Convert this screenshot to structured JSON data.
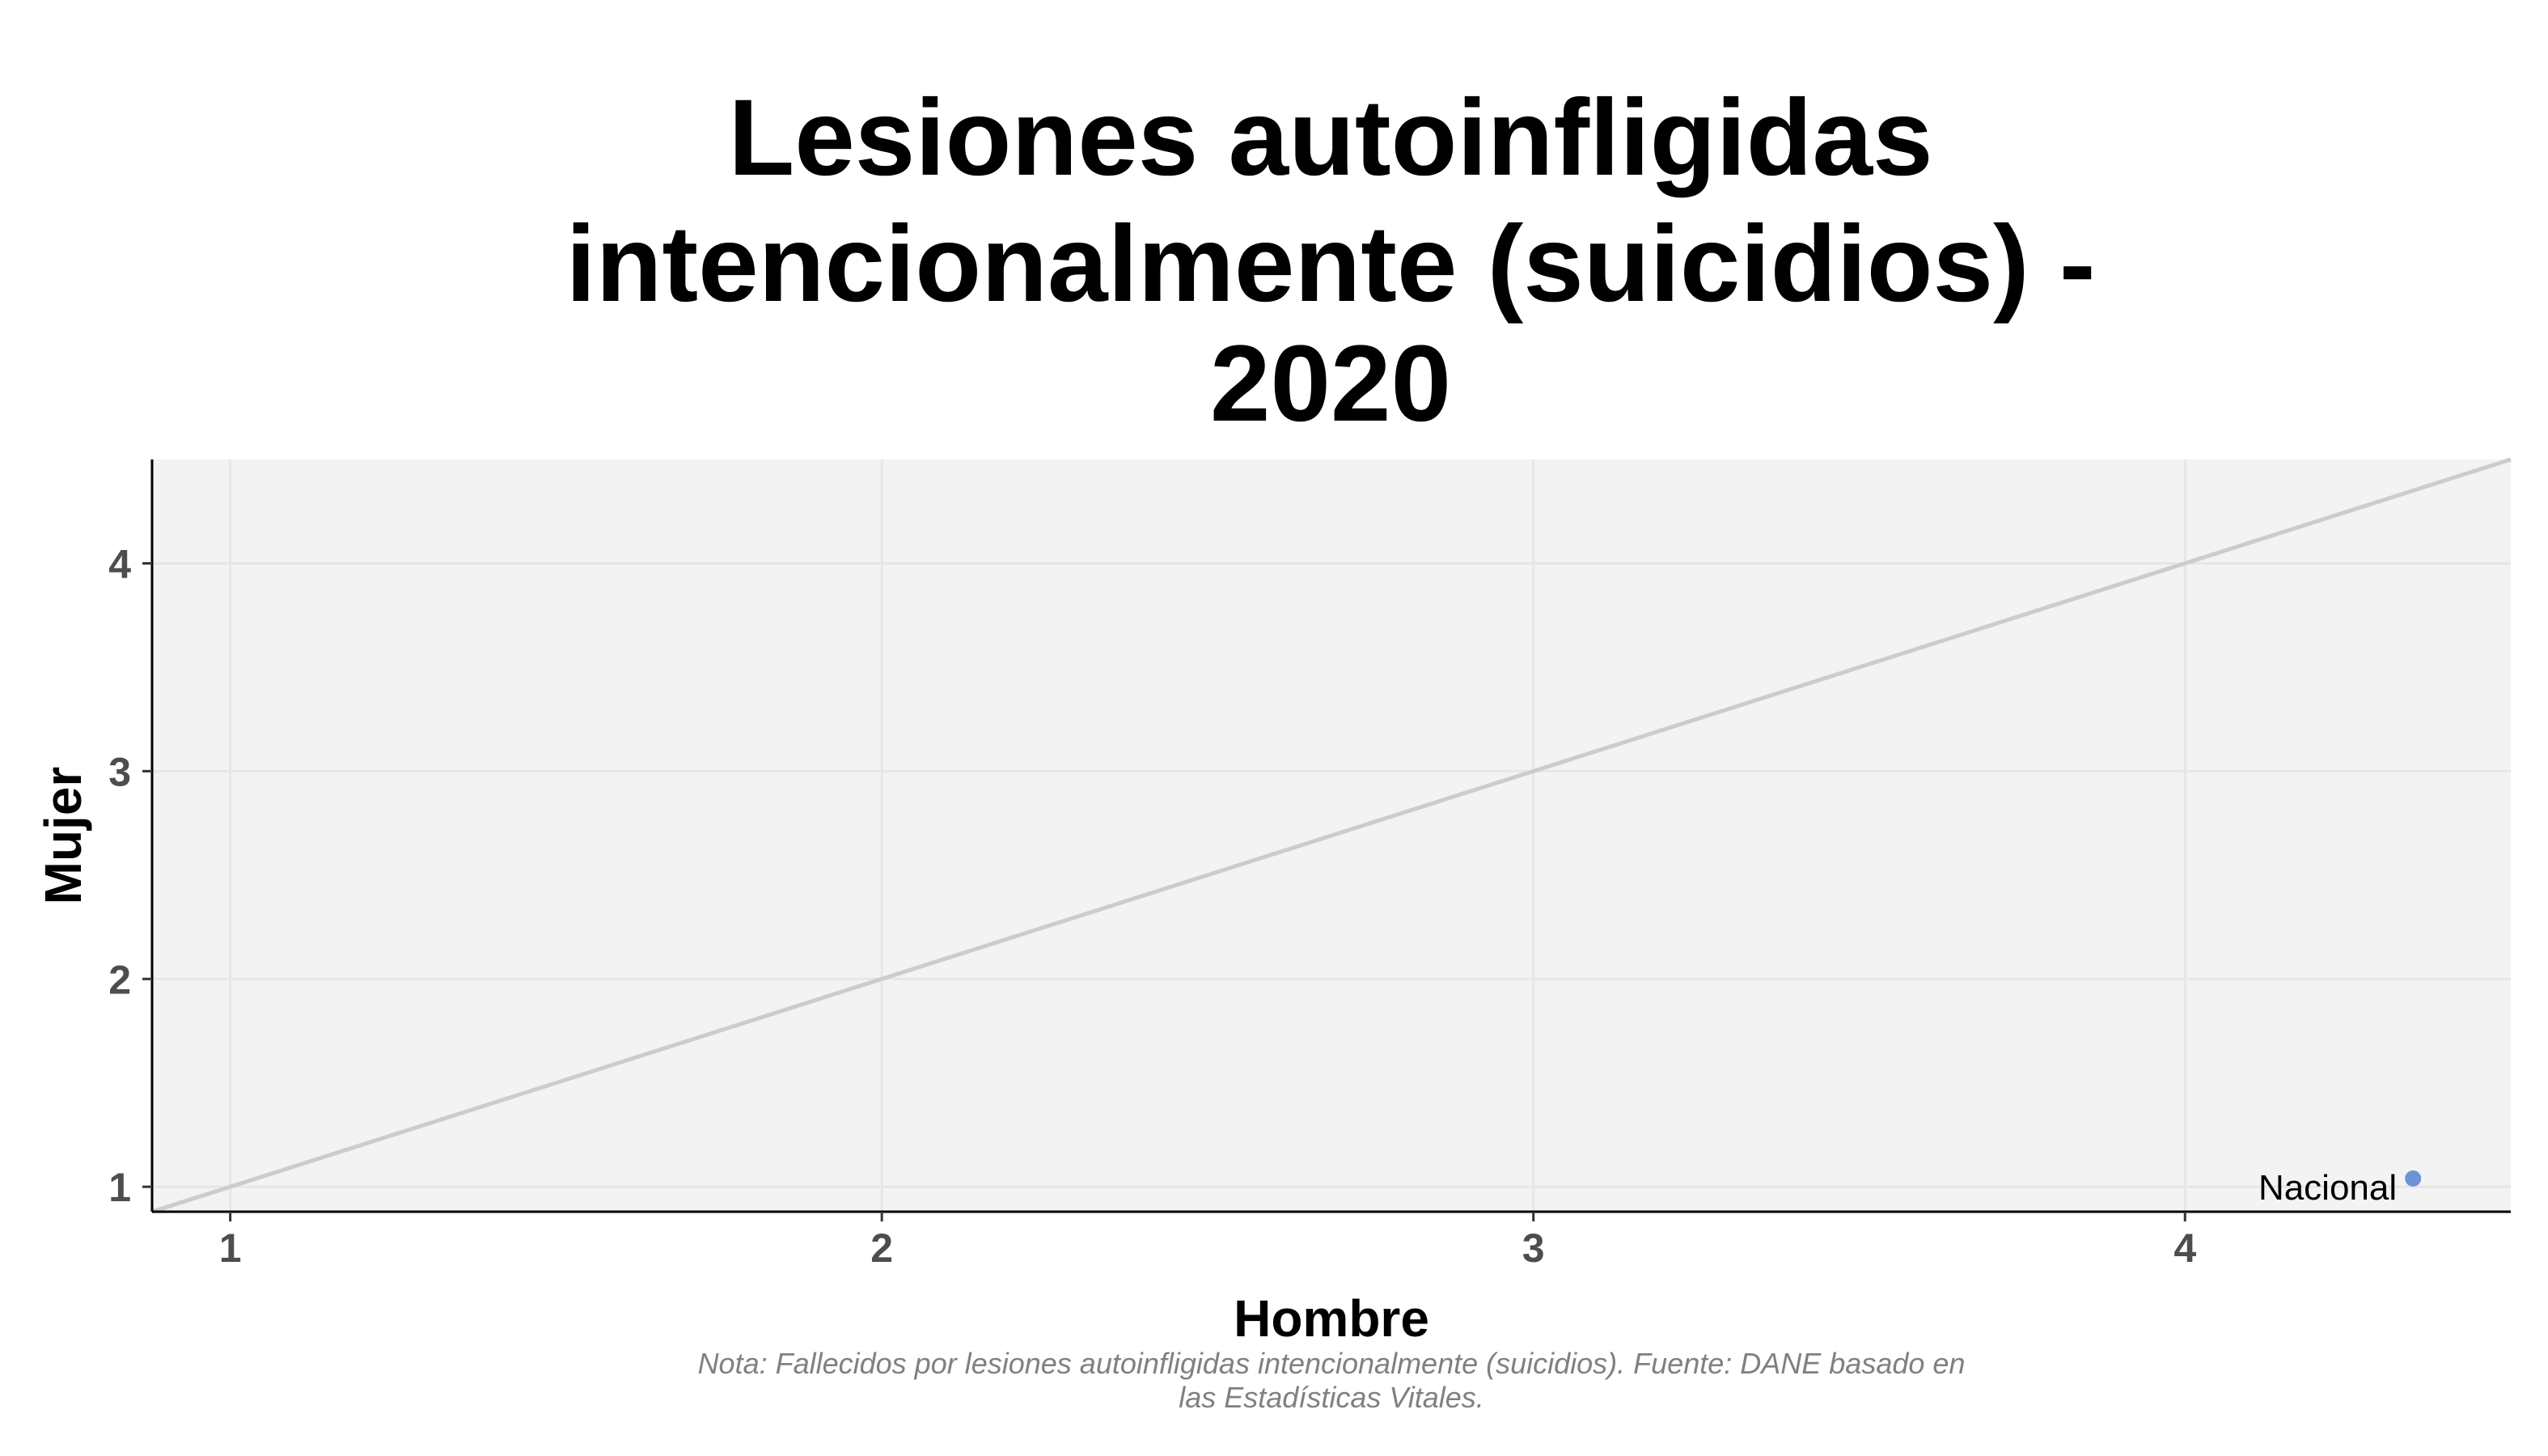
{
  "chart_data": {
    "type": "scatter",
    "title_lines": [
      "Lesiones autoinfligidas",
      "intencionalmente (suicidios) -",
      "2020"
    ],
    "xlabel": "Hombre",
    "ylabel": "Mujer",
    "xlim": [
      0.88,
      4.5
    ],
    "ylim": [
      0.88,
      4.5
    ],
    "x_ticks": [
      1,
      2,
      3,
      4
    ],
    "y_ticks": [
      1,
      2,
      3,
      4
    ],
    "grid": true,
    "reference_line": "y = x",
    "points": [
      {
        "label": "Nacional",
        "x": 4.35,
        "y": 1.04,
        "color": "#6b93d6"
      }
    ],
    "caption_lines": [
      "Nota: Fallecidos por lesiones autoinfligidas intencionalmente (suicidios). Fuente: DANE basado en",
      "las Estadísticas Vitales."
    ]
  },
  "colors": {
    "panel_background": "#f3f3f3",
    "grid": "#e6e6e6",
    "reference_line": "#cccccc",
    "axis": "#000000",
    "point": "#6b93d6"
  }
}
